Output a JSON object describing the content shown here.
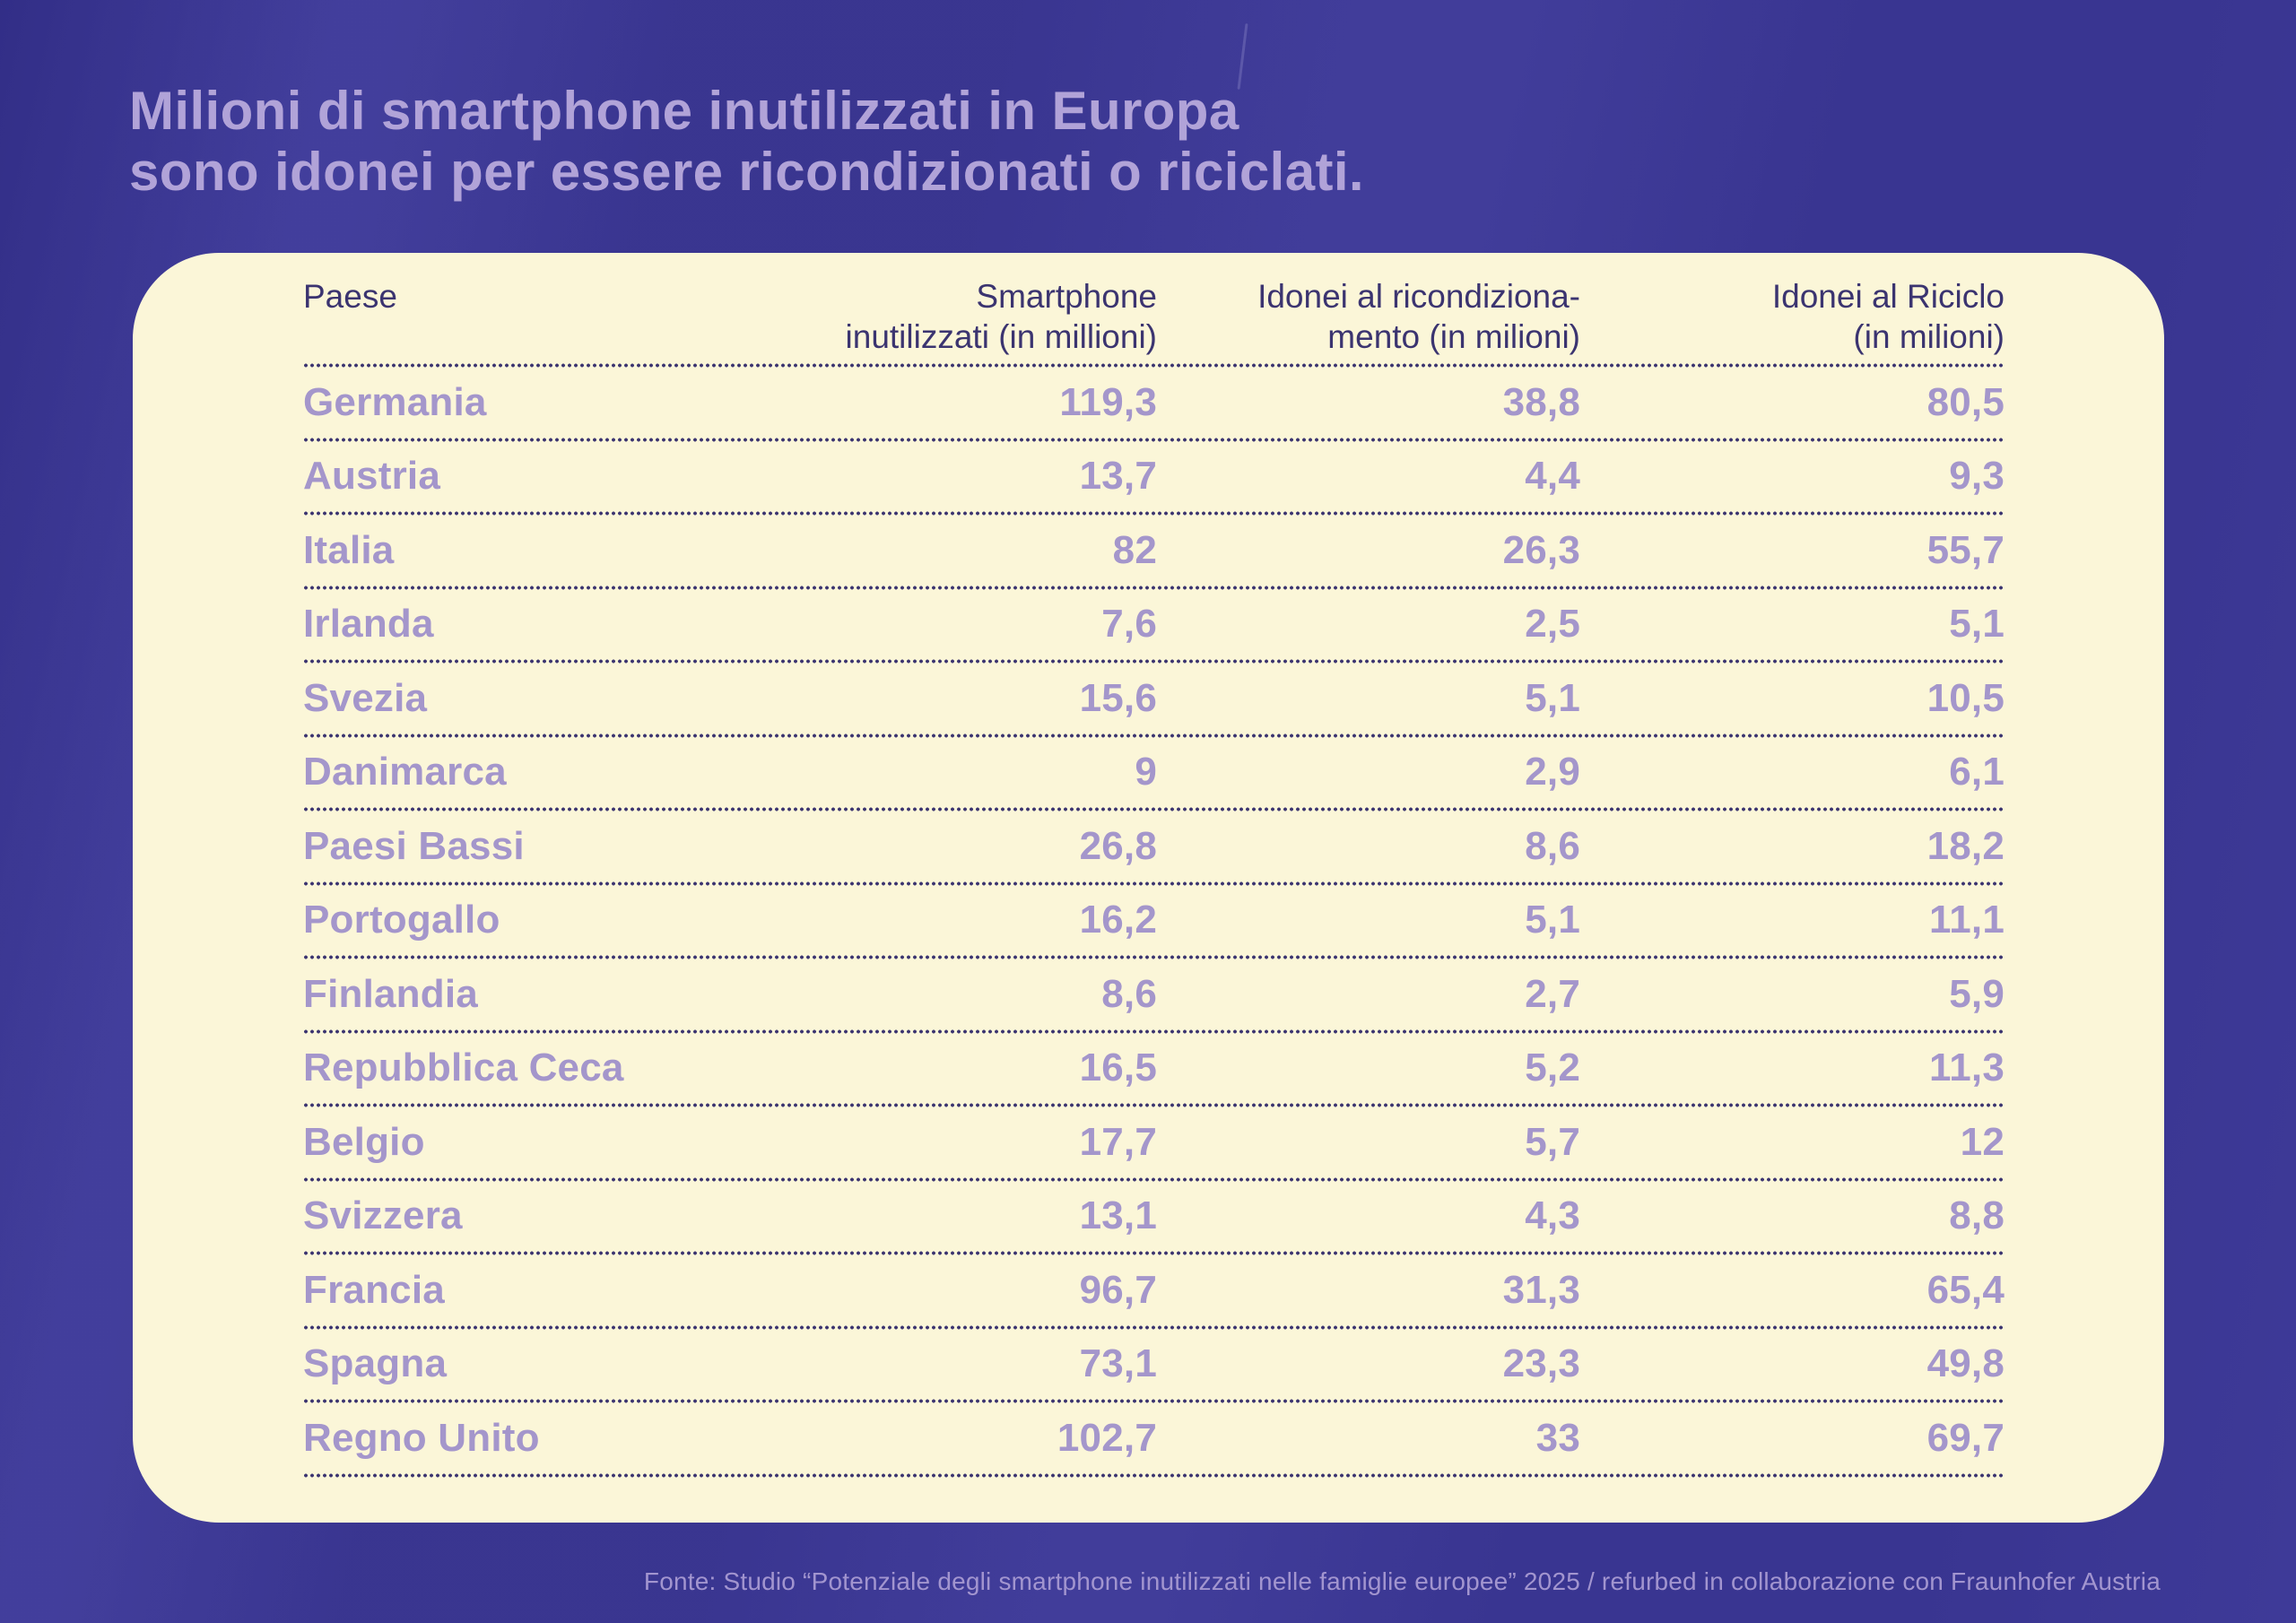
{
  "title": {
    "line1": "Milioni di smartphone inutilizzati in Europa",
    "line2": "sono idonei per essere ricondizionati o riciclati."
  },
  "chart_data": {
    "type": "table",
    "columns": [
      "Paese",
      "Smartphone\ninutilizzati (in millioni)",
      "Idonei al ricondiziona-\nmento (in milioni)",
      "Idonei al Riciclo\n(in milioni)"
    ],
    "rows": [
      [
        "Germania",
        "119,3",
        "38,8",
        "80,5"
      ],
      [
        "Austria",
        "13,7",
        "4,4",
        "9,3"
      ],
      [
        "Italia",
        "82",
        "26,3",
        "55,7"
      ],
      [
        "Irlanda",
        "7,6",
        "2,5",
        "5,1"
      ],
      [
        "Svezia",
        "15,6",
        "5,1",
        "10,5"
      ],
      [
        "Danimarca",
        "9",
        "2,9",
        "6,1"
      ],
      [
        "Paesi Bassi",
        "26,8",
        "8,6",
        "18,2"
      ],
      [
        "Portogallo",
        "16,2",
        "5,1",
        "11,1"
      ],
      [
        "Finlandia",
        "8,6",
        "2,7",
        "5,9"
      ],
      [
        "Repubblica Ceca",
        "16,5",
        "5,2",
        "11,3"
      ],
      [
        "Belgio",
        "17,7",
        "5,7",
        "12"
      ],
      [
        "Svizzera",
        "13,1",
        "4,3",
        "8,8"
      ],
      [
        "Francia",
        "96,7",
        "31,3",
        "65,4"
      ],
      [
        "Spagna",
        "73,1",
        "23,3",
        "49,8"
      ],
      [
        "Regno Unito",
        "102,7",
        "33",
        "69,7"
      ]
    ],
    "rows_numeric": [
      [
        "Germania",
        119.3,
        38.8,
        80.5
      ],
      [
        "Austria",
        13.7,
        4.4,
        9.3
      ],
      [
        "Italia",
        82,
        26.3,
        55.7
      ],
      [
        "Irlanda",
        7.6,
        2.5,
        5.1
      ],
      [
        "Svezia",
        15.6,
        5.1,
        10.5
      ],
      [
        "Danimarca",
        9,
        2.9,
        6.1
      ],
      [
        "Paesi Bassi",
        26.8,
        8.6,
        18.2
      ],
      [
        "Portogallo",
        16.2,
        5.1,
        11.1
      ],
      [
        "Finlandia",
        8.6,
        2.7,
        5.9
      ],
      [
        "Repubblica Ceca",
        16.5,
        5.2,
        11.3
      ],
      [
        "Belgio",
        17.7,
        5.7,
        12
      ],
      [
        "Svizzera",
        13.1,
        4.3,
        8.8
      ],
      [
        "Francia",
        96.7,
        31.3,
        65.4
      ],
      [
        "Spagna",
        73.1,
        23.3,
        49.8
      ],
      [
        "Regno Unito",
        102.7,
        33,
        69.7
      ]
    ],
    "title": "Milioni di smartphone inutilizzati in Europa sono idonei per essere ricondizionati o riciclati."
  },
  "footer": {
    "text": "Fonte: Studio “Potenziale degli smartphone inutilizzati nelle famiglie europee” 2025 / refurbed in collaborazione con Fraunhofer Austria"
  },
  "colors": {
    "background": "#3e3a98",
    "card": "#fbf6d8",
    "title_text": "#b1a3d8",
    "row_text": "#a496cb",
    "header_text": "#3b3470",
    "dots": "#3b3470",
    "footer_text": "#a295cf"
  }
}
